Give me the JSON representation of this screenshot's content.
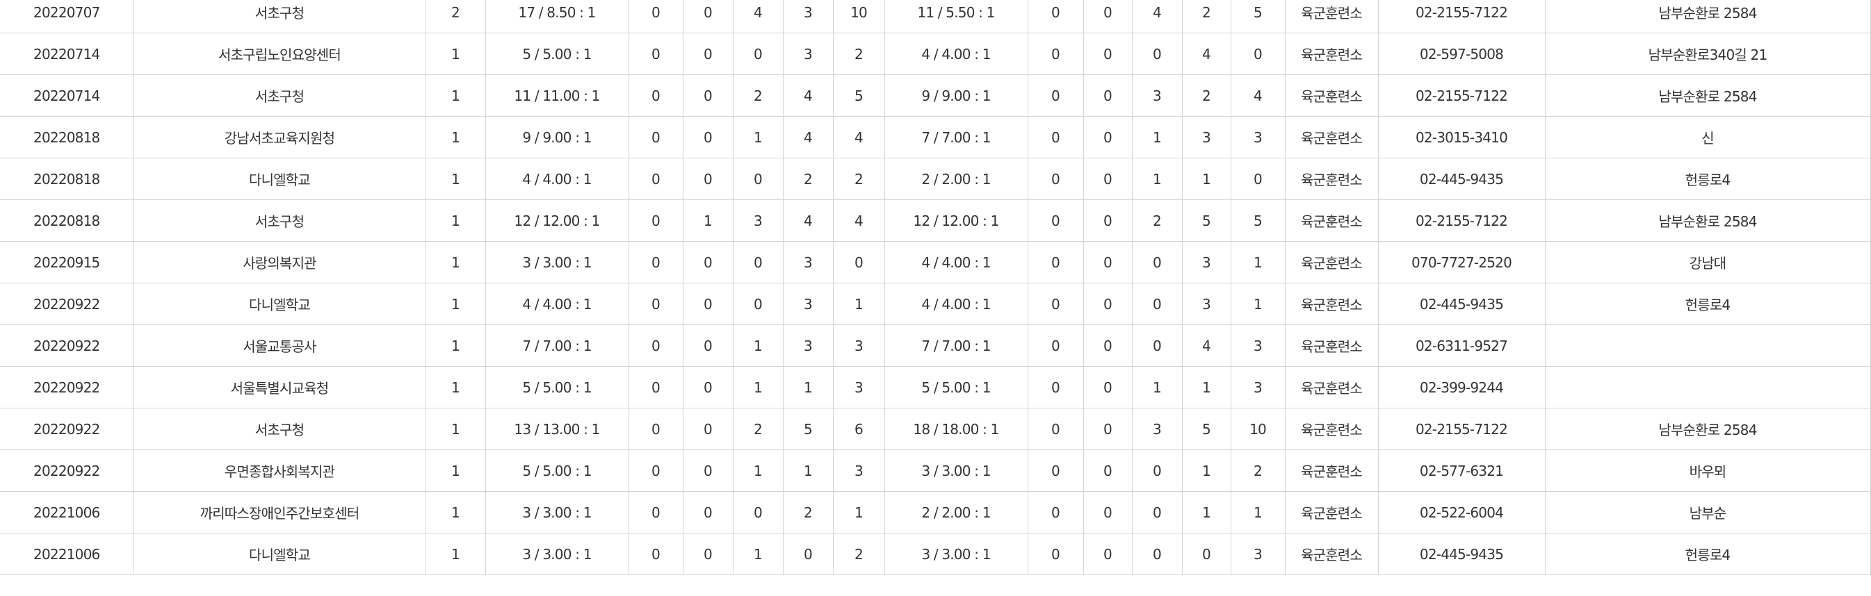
{
  "rows": [
    {
      "date": "20220707",
      "agency": "서초구청",
      "count": "2",
      "ratio1": "17 / 8.50 : 1",
      "c1": "0",
      "c2": "0",
      "c3": "4",
      "c4": "3",
      "c5": "10",
      "ratio2": "11 / 5.50 : 1",
      "d1": "0",
      "d2": "0",
      "d3": "4",
      "d4": "2",
      "d5": "5",
      "place": "육군훈련소",
      "phone": "02-2155-7122",
      "address": "남부순환로 2584"
    },
    {
      "date": "20220714",
      "agency": "서초구립노인요양센터",
      "count": "1",
      "ratio1": "5 / 5.00 : 1",
      "c1": "0",
      "c2": "0",
      "c3": "0",
      "c4": "3",
      "c5": "2",
      "ratio2": "4 / 4.00 : 1",
      "d1": "0",
      "d2": "0",
      "d3": "0",
      "d4": "4",
      "d5": "0",
      "place": "육군훈련소",
      "phone": "02-597-5008",
      "address": "남부순환로340길 21"
    },
    {
      "date": "20220714",
      "agency": "서초구청",
      "count": "1",
      "ratio1": "11 / 11.00 : 1",
      "c1": "0",
      "c2": "0",
      "c3": "2",
      "c4": "4",
      "c5": "5",
      "ratio2": "9 / 9.00 : 1",
      "d1": "0",
      "d2": "0",
      "d3": "3",
      "d4": "2",
      "d5": "4",
      "place": "육군훈련소",
      "phone": "02-2155-7122",
      "address": "남부순환로 2584"
    },
    {
      "date": "20220818",
      "agency": "강남서초교육지원청",
      "count": "1",
      "ratio1": "9 / 9.00 : 1",
      "c1": "0",
      "c2": "0",
      "c3": "1",
      "c4": "4",
      "c5": "4",
      "ratio2": "7 / 7.00 : 1",
      "d1": "0",
      "d2": "0",
      "d3": "1",
      "d4": "3",
      "d5": "3",
      "place": "육군훈련소",
      "phone": "02-3015-3410",
      "address": "신"
    },
    {
      "date": "20220818",
      "agency": "다니엘학교",
      "count": "1",
      "ratio1": "4 / 4.00 : 1",
      "c1": "0",
      "c2": "0",
      "c3": "0",
      "c4": "2",
      "c5": "2",
      "ratio2": "2 / 2.00 : 1",
      "d1": "0",
      "d2": "0",
      "d3": "1",
      "d4": "1",
      "d5": "0",
      "place": "육군훈련소",
      "phone": "02-445-9435",
      "address": "헌릉로4"
    },
    {
      "date": "20220818",
      "agency": "서초구청",
      "count": "1",
      "ratio1": "12 / 12.00 : 1",
      "c1": "0",
      "c2": "1",
      "c3": "3",
      "c4": "4",
      "c5": "4",
      "ratio2": "12 / 12.00 : 1",
      "d1": "0",
      "d2": "0",
      "d3": "2",
      "d4": "5",
      "d5": "5",
      "place": "육군훈련소",
      "phone": "02-2155-7122",
      "address": "남부순환로 2584"
    },
    {
      "date": "20220915",
      "agency": "사랑의복지관",
      "count": "1",
      "ratio1": "3 / 3.00 : 1",
      "c1": "0",
      "c2": "0",
      "c3": "0",
      "c4": "3",
      "c5": "0",
      "ratio2": "4 / 4.00 : 1",
      "d1": "0",
      "d2": "0",
      "d3": "0",
      "d4": "3",
      "d5": "1",
      "place": "육군훈련소",
      "phone": "070-7727-2520",
      "address": "강남대"
    },
    {
      "date": "20220922",
      "agency": "다니엘학교",
      "count": "1",
      "ratio1": "4 / 4.00 : 1",
      "c1": "0",
      "c2": "0",
      "c3": "0",
      "c4": "3",
      "c5": "1",
      "ratio2": "4 / 4.00 : 1",
      "d1": "0",
      "d2": "0",
      "d3": "0",
      "d4": "3",
      "d5": "1",
      "place": "육군훈련소",
      "phone": "02-445-9435",
      "address": "헌릉로4"
    },
    {
      "date": "20220922",
      "agency": "서울교통공사",
      "count": "1",
      "ratio1": "7 / 7.00 : 1",
      "c1": "0",
      "c2": "0",
      "c3": "1",
      "c4": "3",
      "c5": "3",
      "ratio2": "7 / 7.00 : 1",
      "d1": "0",
      "d2": "0",
      "d3": "0",
      "d4": "4",
      "d5": "3",
      "place": "육군훈련소",
      "phone": "02-6311-9527",
      "address": ""
    },
    {
      "date": "20220922",
      "agency": "서울특별시교육청",
      "count": "1",
      "ratio1": "5 / 5.00 : 1",
      "c1": "0",
      "c2": "0",
      "c3": "1",
      "c4": "1",
      "c5": "3",
      "ratio2": "5 / 5.00 : 1",
      "d1": "0",
      "d2": "0",
      "d3": "1",
      "d4": "1",
      "d5": "3",
      "place": "육군훈련소",
      "phone": "02-399-9244",
      "address": ""
    },
    {
      "date": "20220922",
      "agency": "서초구청",
      "count": "1",
      "ratio1": "13 / 13.00 : 1",
      "c1": "0",
      "c2": "0",
      "c3": "2",
      "c4": "5",
      "c5": "6",
      "ratio2": "18 / 18.00 : 1",
      "d1": "0",
      "d2": "0",
      "d3": "3",
      "d4": "5",
      "d5": "10",
      "place": "육군훈련소",
      "phone": "02-2155-7122",
      "address": "남부순환로 2584"
    },
    {
      "date": "20220922",
      "agency": "우면종합사회복지관",
      "count": "1",
      "ratio1": "5 / 5.00 : 1",
      "c1": "0",
      "c2": "0",
      "c3": "1",
      "c4": "1",
      "c5": "3",
      "ratio2": "3 / 3.00 : 1",
      "d1": "0",
      "d2": "0",
      "d3": "0",
      "d4": "1",
      "d5": "2",
      "place": "육군훈련소",
      "phone": "02-577-6321",
      "address": "바우뫼"
    },
    {
      "date": "20221006",
      "agency": "까리따스장애인주간보호센터",
      "count": "1",
      "ratio1": "3 / 3.00 : 1",
      "c1": "0",
      "c2": "0",
      "c3": "0",
      "c4": "2",
      "c5": "1",
      "ratio2": "2 / 2.00 : 1",
      "d1": "0",
      "d2": "0",
      "d3": "0",
      "d4": "1",
      "d5": "1",
      "place": "육군훈련소",
      "phone": "02-522-6004",
      "address": "남부순"
    },
    {
      "date": "20221006",
      "agency": "다니엘학교",
      "count": "1",
      "ratio1": "3 / 3.00 : 1",
      "c1": "0",
      "c2": "0",
      "c3": "1",
      "c4": "0",
      "c5": "2",
      "ratio2": "3 / 3.00 : 1",
      "d1": "0",
      "d2": "0",
      "d3": "0",
      "d4": "0",
      "d5": "3",
      "place": "육군훈련소",
      "phone": "02-445-9435",
      "address": "헌릉로4"
    }
  ]
}
